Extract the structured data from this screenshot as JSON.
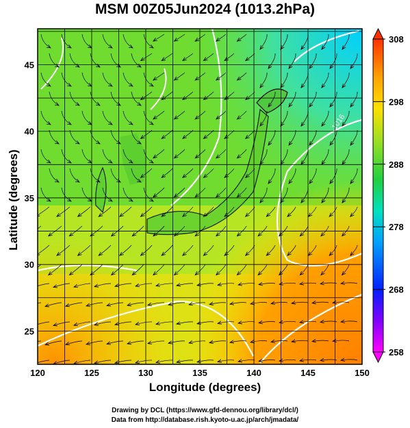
{
  "title": "MSM 00Z05Jun2024 (1013.2hPa)",
  "map": {
    "xlabel": "Longitude (degrees)",
    "ylabel": "Latitude  (degrees)",
    "x_ticks": [
      "120",
      "125",
      "130",
      "135",
      "140",
      "145",
      "150"
    ],
    "y_ticks": [
      "25",
      "30",
      "35",
      "40",
      "45"
    ],
    "xlim": [
      120,
      150
    ],
    "ylim": [
      22.5,
      47.7
    ],
    "contour_label": "1016"
  },
  "colorbar": {
    "ticks": [
      "308",
      "298",
      "288",
      "278",
      "268",
      "258"
    ],
    "range": [
      258,
      308
    ],
    "colors": [
      "#ff00ff",
      "#8000ff",
      "#0000ff",
      "#0080ff",
      "#00c0ff",
      "#00e0c0",
      "#00d060",
      "#40d020",
      "#c0e020",
      "#ffe000",
      "#ffa000",
      "#ff6000",
      "#ff2000"
    ]
  },
  "credits": {
    "line1": "Drawing by DCL (https://www.gfd-dennou.org/library/dcl/)",
    "line2": "Data from http://database.rish.kyoto-u.ac.jp/arch/jmadata/"
  }
}
